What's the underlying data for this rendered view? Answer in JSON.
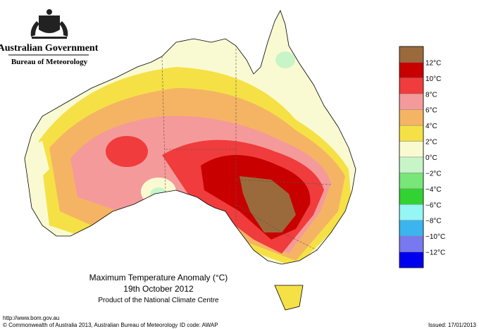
{
  "header": {
    "government": "Australian Government",
    "agency": "Bureau of Meteorology"
  },
  "title": {
    "line1": "Maximum Temperature Anomaly (°C)",
    "line2": "19th October 2012",
    "line3": "Product of the National Climate Centre"
  },
  "legend": {
    "colors": [
      "#9b6a3c",
      "#c80000",
      "#f03c3c",
      "#f59a9a",
      "#f5b464",
      "#f5e146",
      "#fafad2",
      "#c8f5c8",
      "#78e678",
      "#32d232",
      "#96f5f5",
      "#3cb4f0",
      "#7878f0",
      "#0000f0"
    ],
    "labels": [
      "12°C",
      "10°C",
      "8°C",
      "6°C",
      "4°C",
      "2°C",
      "0°C",
      "−2°C",
      "−4°C",
      "−6°C",
      "−8°C",
      "−10°C",
      "−12°C"
    ]
  },
  "footer": {
    "url": "http://www.bom.gov.au",
    "copyright": "© Commonwealth of Australia 2013, Australian Bureau of Meteorology",
    "id_code": "ID code: AWAP",
    "issued": "Issued: 17/01/2013"
  }
}
